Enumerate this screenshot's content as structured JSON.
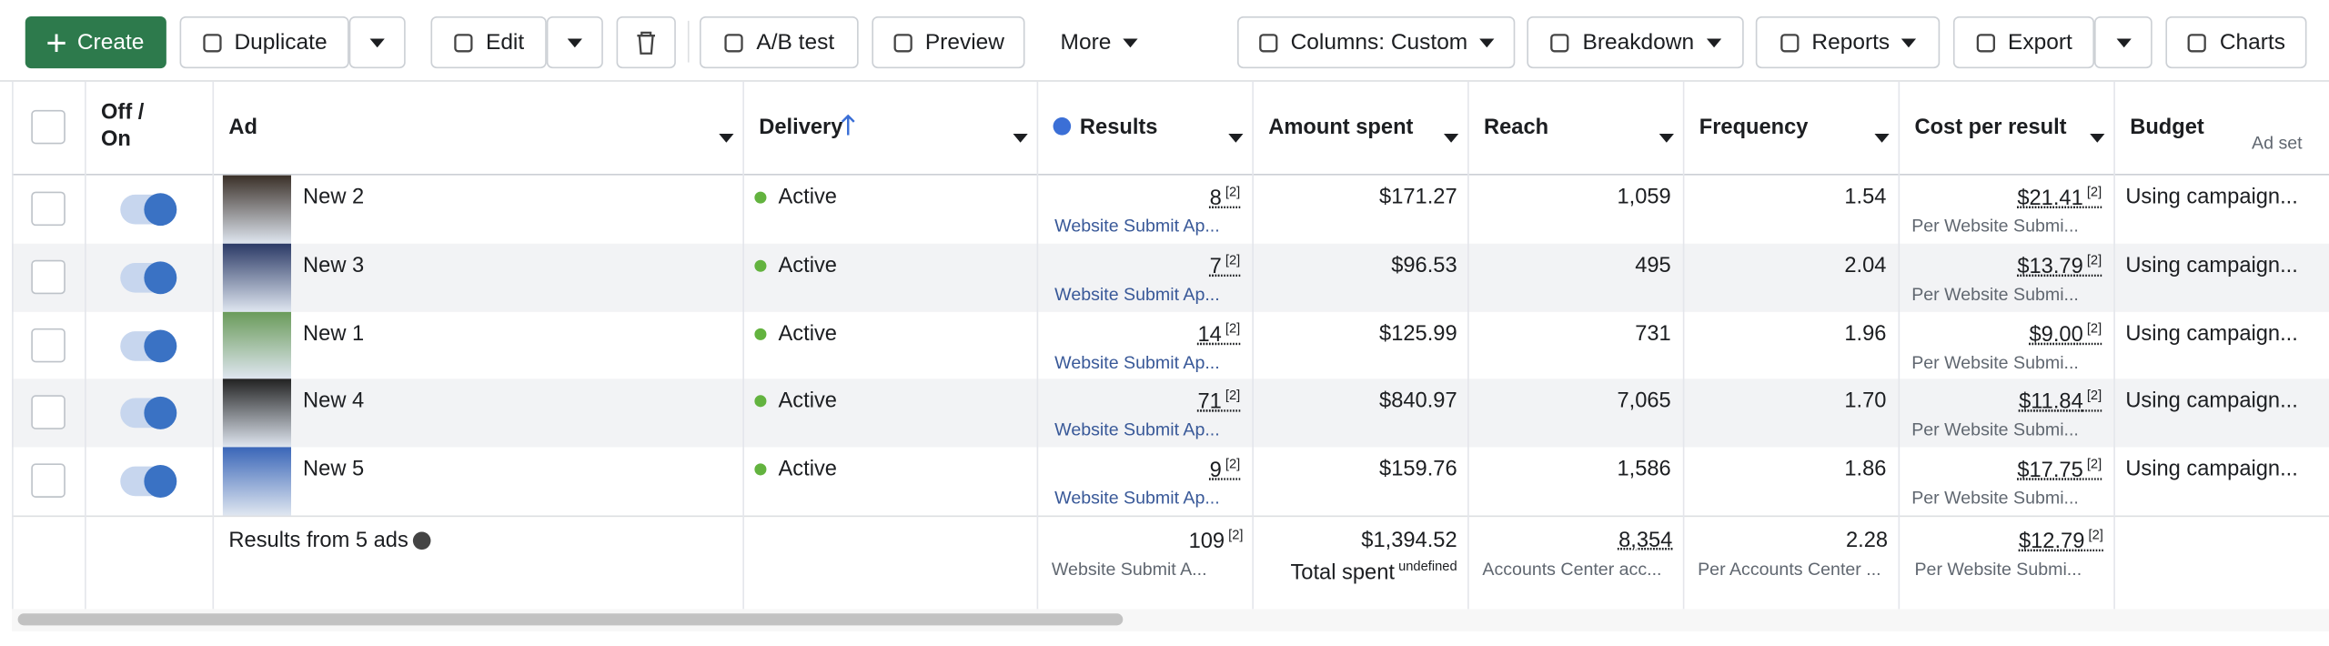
{
  "toolbar": {
    "buttons": [
      "Create",
      "Duplicate",
      "Edit",
      "A/B test",
      "Preview",
      "More",
      "Columns: Custom",
      "Breakdown",
      "Reports",
      "Export",
      "Charts"
    ]
  },
  "table": {
    "headers": [
      "Off / On",
      "Ad",
      "Delivery",
      "Results",
      "Amount spent",
      "Reach",
      "Frequency",
      "Cost per result",
      "Budget"
    ],
    "budget_sub": "Ad set",
    "rows": [
      {
        "ad": "New 2",
        "delivery": "Active",
        "results": "8",
        "results_note": "[2]",
        "results_label": "Website Submit Ap...",
        "amount": "$171.27",
        "reach": "1,059",
        "frequency": "1.54",
        "cost": "$21.41",
        "cost_note": "[2]",
        "cost_label": "Per Website Submi...",
        "budget": "Using campaign..."
      },
      {
        "ad": "New 3",
        "delivery": "Active",
        "results": "7",
        "results_note": "[2]",
        "results_label": "Website Submit Ap...",
        "amount": "$96.53",
        "reach": "495",
        "frequency": "2.04",
        "cost": "$13.79",
        "cost_note": "[2]",
        "cost_label": "Per Website Submi...",
        "budget": "Using campaign..."
      },
      {
        "ad": "New 1",
        "delivery": "Active",
        "results": "14",
        "results_note": "[2]",
        "results_label": "Website Submit Ap...",
        "amount": "$125.99",
        "reach": "731",
        "frequency": "1.96",
        "cost": "$9.00",
        "cost_note": "[2]",
        "cost_label": "Per Website Submi...",
        "budget": "Using campaign..."
      },
      {
        "ad": "New 4",
        "delivery": "Active",
        "results": "71",
        "results_note": "[2]",
        "results_label": "Website Submit Ap...",
        "amount": "$840.97",
        "reach": "7,065",
        "frequency": "1.70",
        "cost": "$11.84",
        "cost_note": "[2]",
        "cost_label": "Per Website Submi...",
        "budget": "Using campaign..."
      },
      {
        "ad": "New 5",
        "delivery": "Active",
        "results": "9",
        "results_note": "[2]",
        "results_label": "Website Submit Ap...",
        "amount": "$159.76",
        "reach": "1,586",
        "frequency": "1.86",
        "cost": "$17.75",
        "cost_note": "[2]",
        "cost_label": "Per Website Submi...",
        "budget": "Using campaign..."
      }
    ],
    "summary": {
      "label": "Results from 5 ads",
      "results": "109",
      "results_note": "[2]",
      "results_label": "Website Submit A...",
      "amount": "$1,394.52",
      "amount_label": "Total spent",
      "reach": "8,354",
      "reach_label": "Accounts Center acc...",
      "frequency": "2.28",
      "frequency_label": "Per Accounts Center ...",
      "cost": "$12.79",
      "cost_note": "[2]",
      "cost_label": "Per Website Submi..."
    }
  }
}
